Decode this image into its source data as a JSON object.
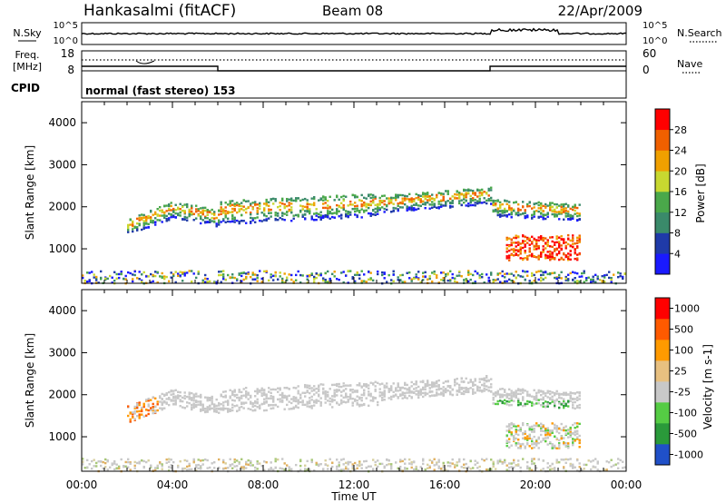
{
  "header": {
    "station": "Hankasalmi (fitACF)",
    "beam": "Beam 08",
    "date": "22/Apr/2009"
  },
  "panels": {
    "noise": {
      "left_label": "N.Sky",
      "right_label": "N.Search",
      "left_ticks": [
        "10^5",
        "10^0"
      ],
      "right_ticks": [
        "10^5",
        "10^0"
      ]
    },
    "freq": {
      "left_label_1": "Freq.",
      "left_label_2": "[MHz]",
      "right_label": "Nave",
      "left_ticks": [
        "18",
        "8"
      ],
      "right_ticks": [
        "60",
        "0"
      ]
    },
    "cpid": {
      "label": "CPID",
      "text": "normal (fast stereo) 153"
    }
  },
  "colors": {
    "power": [
      "#1a1aff",
      "#1f3aa8",
      "#3a8a6a",
      "#4aa84a",
      "#c8d830",
      "#f0a000",
      "#f06000",
      "#ff0000"
    ],
    "velocity": [
      "#ff0000",
      "#ff5a00",
      "#ff9a00",
      "#e8c080",
      "#c8c8c8",
      "#55cc44",
      "#2a9a3a",
      "#2050c8"
    ],
    "grey": "#c8c8c8"
  },
  "chart_data": [
    {
      "type": "heatmap",
      "name": "power",
      "xlabel": "",
      "ylabel": "Slant Range [km]",
      "xlim": [
        0,
        24
      ],
      "ylim": [
        180,
        4500
      ],
      "x_ticks": [
        "00:00",
        "04:00",
        "08:00",
        "12:00",
        "16:00",
        "20:00",
        "00:00"
      ],
      "y_ticks": [
        1000,
        2000,
        3000,
        4000
      ],
      "colorbar": {
        "label": "Power [dB]",
        "ticks": [
          "4",
          "8",
          "12",
          "16",
          "20",
          "24",
          "28"
        ]
      }
    },
    {
      "type": "heatmap",
      "name": "velocity",
      "xlabel": "Time UT",
      "ylabel": "Slant Range [km]",
      "xlim": [
        0,
        24
      ],
      "ylim": [
        180,
        4500
      ],
      "x_ticks": [
        "00:00",
        "04:00",
        "08:00",
        "12:00",
        "16:00",
        "20:00",
        "00:00"
      ],
      "y_ticks": [
        1000,
        2000,
        3000,
        4000
      ],
      "colorbar": {
        "label": "Velocity [m s-1]",
        "ticks": [
          "1000",
          "500",
          "100",
          "25",
          "-25",
          "-100",
          "-500",
          "-1000"
        ]
      }
    }
  ]
}
